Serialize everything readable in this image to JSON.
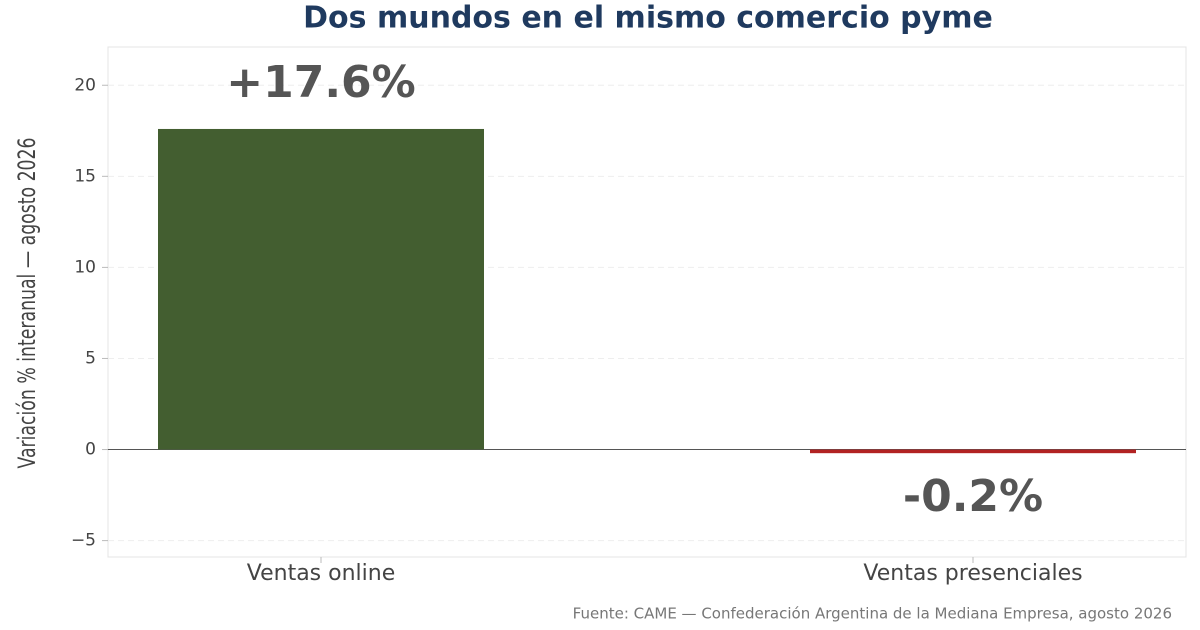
{
  "chart_data": {
    "type": "bar",
    "title": "Dos mundos en el mismo comercio pyme",
    "y_label": "Variación % interanual — agosto 2026",
    "source": "Fuente: CAME — Confederación Argentina de la Mediana Empresa, agosto 2026",
    "categories": [
      "Ventas online",
      "Ventas presenciales"
    ],
    "values": [
      17.6,
      -0.2
    ],
    "value_labels": [
      "+17.6%",
      "-0.2%"
    ],
    "colors": [
      "#435e30",
      "#b22222"
    ],
    "ylim": [
      -5.9,
      22.1
    ],
    "yticks": [
      {
        "value": -5,
        "label": "−5"
      },
      0,
      5,
      10,
      15,
      20
    ],
    "grid": true
  }
}
